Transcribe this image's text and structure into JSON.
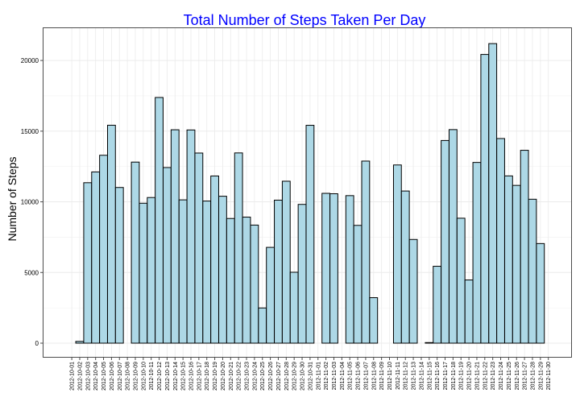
{
  "chart_data": {
    "type": "bar",
    "title": "Total Number of Steps Taken Per Day",
    "xlabel": "",
    "ylabel": "Number of Steps",
    "ylim": [
      0,
      22000
    ],
    "yticks": [
      0,
      5000,
      10000,
      15000,
      20000
    ],
    "grid": true,
    "legend": "none",
    "categories": [
      "2012-10-01",
      "2012-10-02",
      "2012-10-03",
      "2012-10-04",
      "2012-10-05",
      "2012-10-06",
      "2012-10-07",
      "2012-10-08",
      "2012-10-09",
      "2012-10-10",
      "2012-10-11",
      "2012-10-12",
      "2012-10-13",
      "2012-10-14",
      "2012-10-15",
      "2012-10-16",
      "2012-10-17",
      "2012-10-18",
      "2012-10-19",
      "2012-10-20",
      "2012-10-21",
      "2012-10-22",
      "2012-10-23",
      "2012-10-24",
      "2012-10-25",
      "2012-10-26",
      "2012-10-27",
      "2012-10-28",
      "2012-10-29",
      "2012-10-30",
      "2012-10-31",
      "2012-11-01",
      "2012-11-02",
      "2012-11-03",
      "2012-11-04",
      "2012-11-05",
      "2012-11-06",
      "2012-11-07",
      "2012-11-08",
      "2012-11-09",
      "2012-11-10",
      "2012-11-11",
      "2012-11-12",
      "2012-11-13",
      "2012-11-14",
      "2012-11-15",
      "2012-11-16",
      "2012-11-17",
      "2012-11-18",
      "2012-11-19",
      "2012-11-20",
      "2012-11-21",
      "2012-11-22",
      "2012-11-23",
      "2012-11-24",
      "2012-11-25",
      "2012-11-26",
      "2012-11-27",
      "2012-11-28",
      "2012-11-29",
      "2012-11-30"
    ],
    "values": [
      0,
      126,
      11352,
      12116,
      13294,
      15420,
      11015,
      0,
      12811,
      9900,
      10304,
      17382,
      12426,
      15098,
      10139,
      15084,
      13452,
      10056,
      11829,
      10395,
      8821,
      13460,
      8918,
      8355,
      2492,
      6778,
      10119,
      11458,
      5018,
      9819,
      15414,
      0,
      10600,
      10571,
      0,
      10439,
      8334,
      12883,
      3219,
      0,
      0,
      12608,
      10765,
      7336,
      0,
      41,
      5441,
      14339,
      15110,
      8841,
      4472,
      12787,
      20427,
      21194,
      14478,
      11834,
      11162,
      13646,
      10183,
      7047,
      0
    ],
    "colors": {
      "bar_fill": "#add8e6",
      "bar_stroke": "#000000",
      "title": "#0000ff",
      "grid": "#ebebeb",
      "panel_border": "#4d4d4d"
    }
  }
}
